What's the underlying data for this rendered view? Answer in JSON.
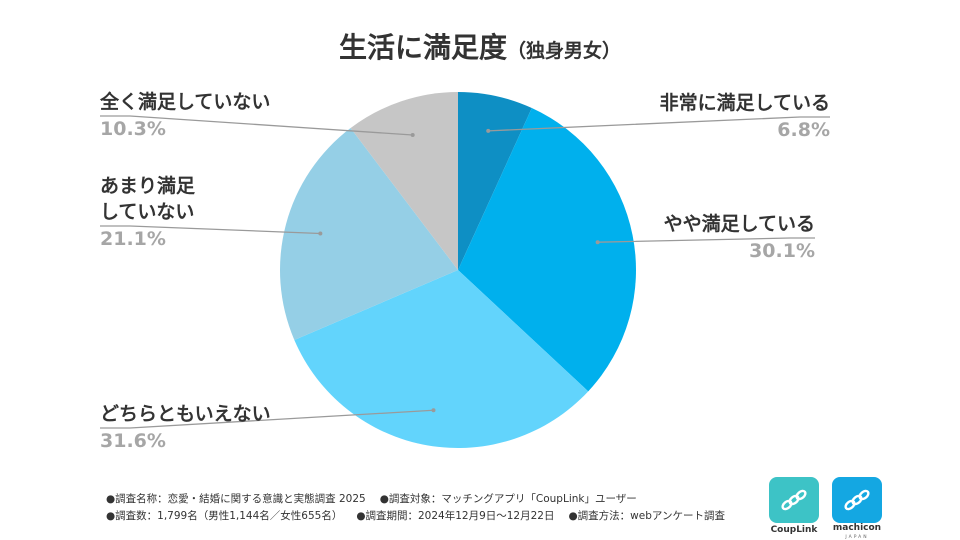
{
  "title": {
    "main": "生活に満足度",
    "sub": "（独身男女）"
  },
  "chart_data": {
    "type": "pie",
    "title": "生活に満足度（独身男女）",
    "start": "12 o'clock",
    "direction": "clockwise",
    "slices": [
      {
        "label": "非常に満足している",
        "value": 6.8,
        "display": "6.8%",
        "color": "#0e8fc4",
        "label_side": "right"
      },
      {
        "label": "やや満足している",
        "value": 30.1,
        "display": "30.1%",
        "color": "#00b0ed",
        "label_side": "right"
      },
      {
        "label": "どちらともいえない",
        "value": 31.6,
        "display": "31.6%",
        "color": "#62d4fc",
        "label_side": "left"
      },
      {
        "label": "あまり満足していない",
        "label_lines": [
          "あまり満足",
          "していない"
        ],
        "value": 21.1,
        "display": "21.1%",
        "color": "#95cfe6",
        "label_side": "left"
      },
      {
        "label": "全く満足していない",
        "value": 10.3,
        "display": "10.3%",
        "color": "#c6c6c6",
        "label_side": "left"
      }
    ]
  },
  "notes": {
    "line1": [
      "●調査名称：恋愛・結婚に関する意識と実態調査 2025",
      "●調査対象：マッチングアプリ「CoupLink」ユーザー"
    ],
    "line2": [
      "●調査数：1,799名（男性1,144名／女性655名）",
      "●調査期間：2024年12月9日〜12月22日",
      "●調査方法：webアンケート調査"
    ]
  },
  "logos": {
    "couplink": {
      "caption": "CoupLink",
      "color": "#3dc3c6"
    },
    "machicon": {
      "caption": "machicon",
      "sub": "JAPAN",
      "color": "#14a7e2"
    }
  }
}
